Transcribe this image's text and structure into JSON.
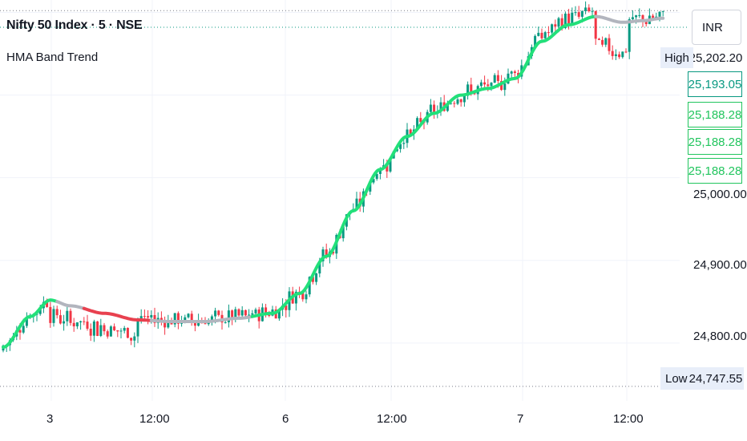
{
  "header": {
    "symbol_title": "Nifty 50 Index · 5 · NSE",
    "indicator_name": "HMA Band Trend",
    "currency": "INR"
  },
  "price_axis": {
    "labels": [
      "25,000.00",
      "24,900.00",
      "24,800.00"
    ],
    "high_tag": "High",
    "high_value": "25,202.20",
    "low_tag": "Low",
    "low_value": "24,747.55",
    "boxes": [
      {
        "value": "25,193.05",
        "color": "#089981"
      },
      {
        "value": "25,188.28",
        "color": "#22c55e"
      },
      {
        "value": "25,188.28",
        "color": "#22c55e"
      },
      {
        "value": "25,188.28",
        "color": "#22c55e"
      }
    ]
  },
  "time_axis": {
    "labels": [
      "3",
      "12:00",
      "6",
      "12:00",
      "7",
      "12:00"
    ]
  },
  "colors": {
    "up_candle": "#089981",
    "down_candle": "#f23645",
    "hma_up": "#22e07a",
    "hma_down": "#e8414f",
    "hma_neutral": "#b2b5be",
    "grid": "#f0f3fa"
  },
  "chart_data": {
    "type": "line",
    "title": "Nifty 50 Index · 5 · NSE",
    "ylim": [
      24730,
      25215
    ],
    "high": 25202.2,
    "low": 24747.55,
    "hma_band_trend": [
      {
        "i": 0,
        "v": 24795
      },
      {
        "i": 8,
        "v": 24832
      },
      {
        "i": 14,
        "v": 24852
      },
      {
        "i": 20,
        "v": 24845
      },
      {
        "i": 30,
        "v": 24836
      },
      {
        "i": 40,
        "v": 24828
      },
      {
        "i": 50,
        "v": 24826
      },
      {
        "i": 60,
        "v": 24826
      },
      {
        "i": 70,
        "v": 24830
      },
      {
        "i": 80,
        "v": 24836
      },
      {
        "i": 88,
        "v": 24860
      },
      {
        "i": 96,
        "v": 24905
      },
      {
        "i": 104,
        "v": 24960
      },
      {
        "i": 112,
        "v": 25010
      },
      {
        "i": 120,
        "v": 25050
      },
      {
        "i": 128,
        "v": 25078
      },
      {
        "i": 136,
        "v": 25100
      },
      {
        "i": 144,
        "v": 25108
      },
      {
        "i": 152,
        "v": 25120
      },
      {
        "i": 160,
        "v": 25165
      },
      {
        "i": 168,
        "v": 25185
      },
      {
        "i": 176,
        "v": 25195
      },
      {
        "i": 184,
        "v": 25188
      },
      {
        "i": 190,
        "v": 25190
      },
      {
        "i": 196,
        "v": 25193
      }
    ],
    "trend_states": [
      {
        "from": 0,
        "to": 16,
        "state": "up"
      },
      {
        "from": 16,
        "to": 24,
        "state": "neutral"
      },
      {
        "from": 24,
        "to": 44,
        "state": "down"
      },
      {
        "from": 44,
        "to": 74,
        "state": "neutral"
      },
      {
        "from": 74,
        "to": 176,
        "state": "up"
      },
      {
        "from": 176,
        "to": 196,
        "state": "neutral"
      }
    ]
  }
}
